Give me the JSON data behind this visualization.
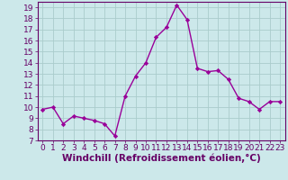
{
  "x": [
    0,
    1,
    2,
    3,
    4,
    5,
    6,
    7,
    8,
    9,
    10,
    11,
    12,
    13,
    14,
    15,
    16,
    17,
    18,
    19,
    20,
    21,
    22,
    23
  ],
  "y": [
    9.8,
    10.0,
    8.5,
    9.2,
    9.0,
    8.8,
    8.5,
    7.4,
    11.0,
    12.8,
    14.0,
    16.3,
    17.2,
    19.2,
    17.9,
    13.5,
    13.2,
    13.3,
    12.5,
    10.8,
    10.5,
    9.8,
    10.5,
    10.5
  ],
  "line_color": "#990099",
  "marker": "D",
  "marker_size": 2.2,
  "bg_color": "#cce8ea",
  "grid_color": "#aacccc",
  "xlabel": "Windchill (Refroidissement éolien,°C)",
  "ylabel": "",
  "xlim": [
    -0.5,
    23.5
  ],
  "ylim": [
    7,
    19.5
  ],
  "yticks": [
    7,
    8,
    9,
    10,
    11,
    12,
    13,
    14,
    15,
    16,
    17,
    18,
    19
  ],
  "xticks": [
    0,
    1,
    2,
    3,
    4,
    5,
    6,
    7,
    8,
    9,
    10,
    11,
    12,
    13,
    14,
    15,
    16,
    17,
    18,
    19,
    20,
    21,
    22,
    23
  ],
  "tick_label_fontsize": 6.5,
  "xlabel_fontsize": 7.5,
  "line_width": 1.0
}
